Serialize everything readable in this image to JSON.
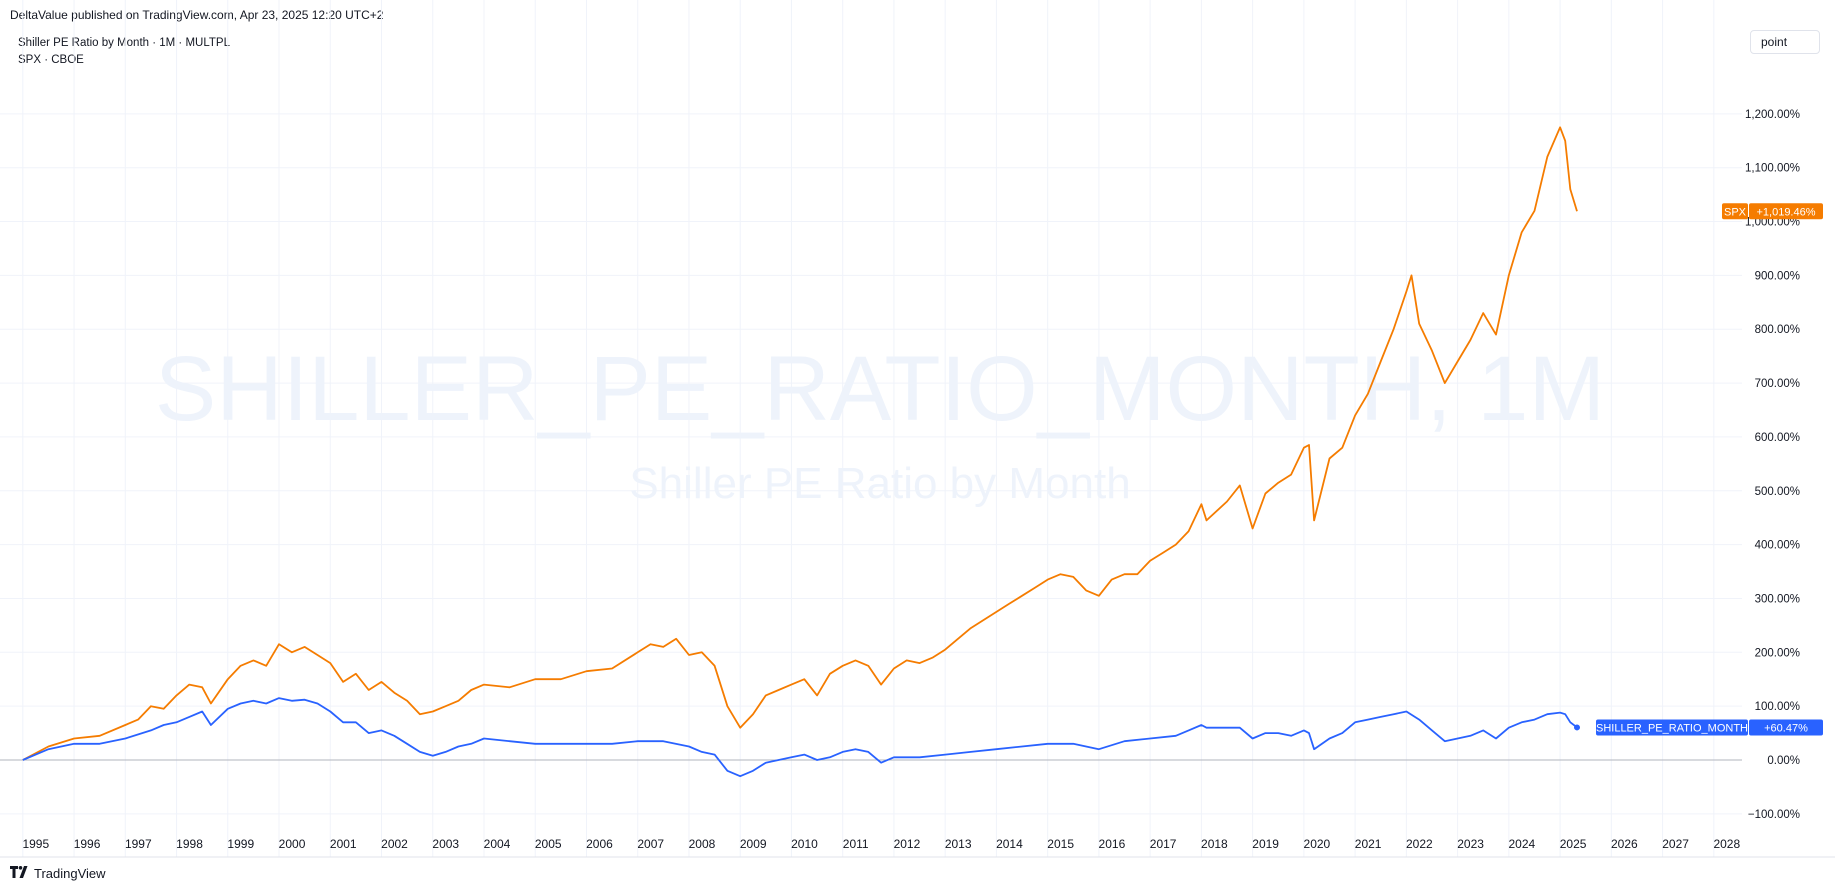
{
  "header": {
    "published": "DeltaValue published on TradingView.com, Apr 23, 2025 12:20 UTC+2"
  },
  "legend": {
    "line1": "Shiller PE Ratio by Month · 1M · MULTPL",
    "line2": "SPX · CBOE"
  },
  "scale_button": "point",
  "watermark": {
    "title": "SHILLER_PE_RATIO_MONTH, 1M",
    "subtitle": "Shiller PE Ratio by Month"
  },
  "footer": {
    "brand": "TradingView"
  },
  "colors": {
    "spx": "#f57c00",
    "shiller": "#2962ff",
    "grid": "#f0f3fa",
    "zero": "#b2b5be",
    "watermark": "#eef3fb"
  },
  "chart_data": {
    "type": "line",
    "x_axis": {
      "label": "",
      "range": [
        1994.75,
        2028.55
      ],
      "ticks": [
        "1995",
        "1996",
        "1997",
        "1998",
        "1999",
        "2000",
        "2001",
        "2002",
        "2003",
        "2004",
        "2005",
        "2006",
        "2007",
        "2008",
        "2009",
        "2010",
        "2011",
        "2012",
        "2013",
        "2014",
        "2015",
        "2016",
        "2017",
        "2018",
        "2019",
        "2020",
        "2021",
        "2022",
        "2023",
        "2024",
        "2025",
        "2026",
        "2027",
        "2028"
      ]
    },
    "y_axis": {
      "label": "",
      "unit": "%",
      "range": [
        -130,
        1300
      ],
      "ticks": [
        "−100.00%",
        "0.00%",
        "100.00%",
        "200.00%",
        "300.00%",
        "400.00%",
        "500.00%",
        "600.00%",
        "700.00%",
        "800.00%",
        "900.00%",
        "1,000.00%",
        "1,100.00%",
        "1,200.00%"
      ]
    },
    "grid": true,
    "series": [
      {
        "name": "SPX",
        "label": "SPX",
        "last_value": "+1,019.46%",
        "points": [
          [
            1995.0,
            0
          ],
          [
            1995.5,
            25
          ],
          [
            1996.0,
            40
          ],
          [
            1996.5,
            45
          ],
          [
            1997.0,
            65
          ],
          [
            1997.25,
            75
          ],
          [
            1997.5,
            100
          ],
          [
            1997.75,
            95
          ],
          [
            1998.0,
            120
          ],
          [
            1998.25,
            140
          ],
          [
            1998.5,
            135
          ],
          [
            1998.67,
            105
          ],
          [
            1999.0,
            150
          ],
          [
            1999.25,
            175
          ],
          [
            1999.5,
            185
          ],
          [
            1999.75,
            175
          ],
          [
            2000.0,
            215
          ],
          [
            2000.25,
            200
          ],
          [
            2000.5,
            210
          ],
          [
            2000.75,
            195
          ],
          [
            2001.0,
            180
          ],
          [
            2001.25,
            145
          ],
          [
            2001.5,
            160
          ],
          [
            2001.75,
            130
          ],
          [
            2002.0,
            145
          ],
          [
            2002.25,
            125
          ],
          [
            2002.5,
            110
          ],
          [
            2002.75,
            85
          ],
          [
            2003.0,
            90
          ],
          [
            2003.25,
            100
          ],
          [
            2003.5,
            110
          ],
          [
            2003.75,
            130
          ],
          [
            2004.0,
            140
          ],
          [
            2004.5,
            135
          ],
          [
            2005.0,
            150
          ],
          [
            2005.5,
            150
          ],
          [
            2006.0,
            165
          ],
          [
            2006.5,
            170
          ],
          [
            2007.0,
            200
          ],
          [
            2007.25,
            215
          ],
          [
            2007.5,
            210
          ],
          [
            2007.75,
            225
          ],
          [
            2008.0,
            195
          ],
          [
            2008.25,
            200
          ],
          [
            2008.5,
            175
          ],
          [
            2008.75,
            100
          ],
          [
            2009.0,
            60
          ],
          [
            2009.25,
            85
          ],
          [
            2009.5,
            120
          ],
          [
            2009.75,
            130
          ],
          [
            2010.0,
            140
          ],
          [
            2010.25,
            150
          ],
          [
            2010.5,
            120
          ],
          [
            2010.75,
            160
          ],
          [
            2011.0,
            175
          ],
          [
            2011.25,
            185
          ],
          [
            2011.5,
            175
          ],
          [
            2011.75,
            140
          ],
          [
            2012.0,
            170
          ],
          [
            2012.25,
            185
          ],
          [
            2012.5,
            180
          ],
          [
            2012.75,
            190
          ],
          [
            2013.0,
            205
          ],
          [
            2013.25,
            225
          ],
          [
            2013.5,
            245
          ],
          [
            2013.75,
            260
          ],
          [
            2014.0,
            275
          ],
          [
            2014.25,
            290
          ],
          [
            2014.5,
            305
          ],
          [
            2014.75,
            320
          ],
          [
            2015.0,
            335
          ],
          [
            2015.25,
            345
          ],
          [
            2015.5,
            340
          ],
          [
            2015.75,
            315
          ],
          [
            2016.0,
            305
          ],
          [
            2016.25,
            335
          ],
          [
            2016.5,
            345
          ],
          [
            2016.75,
            345
          ],
          [
            2017.0,
            370
          ],
          [
            2017.25,
            385
          ],
          [
            2017.5,
            400
          ],
          [
            2017.75,
            425
          ],
          [
            2018.0,
            475
          ],
          [
            2018.1,
            445
          ],
          [
            2018.5,
            480
          ],
          [
            2018.75,
            510
          ],
          [
            2019.0,
            430
          ],
          [
            2019.25,
            495
          ],
          [
            2019.5,
            515
          ],
          [
            2019.75,
            530
          ],
          [
            2020.0,
            580
          ],
          [
            2020.1,
            585
          ],
          [
            2020.2,
            445
          ],
          [
            2020.5,
            560
          ],
          [
            2020.75,
            580
          ],
          [
            2021.0,
            640
          ],
          [
            2021.25,
            680
          ],
          [
            2021.5,
            740
          ],
          [
            2021.75,
            800
          ],
          [
            2022.0,
            870
          ],
          [
            2022.1,
            900
          ],
          [
            2022.25,
            810
          ],
          [
            2022.5,
            760
          ],
          [
            2022.75,
            700
          ],
          [
            2023.0,
            740
          ],
          [
            2023.25,
            780
          ],
          [
            2023.5,
            830
          ],
          [
            2023.75,
            790
          ],
          [
            2024.0,
            900
          ],
          [
            2024.25,
            980
          ],
          [
            2024.5,
            1020
          ],
          [
            2024.75,
            1120
          ],
          [
            2025.0,
            1175
          ],
          [
            2025.1,
            1150
          ],
          [
            2025.2,
            1060
          ],
          [
            2025.33,
            1019
          ]
        ]
      },
      {
        "name": "SHILLER_PE_RATIO_MONTH",
        "label": "SHILLER_PE_RATIO_MONTH",
        "last_value": "+60.47%",
        "points": [
          [
            1995.0,
            0
          ],
          [
            1995.5,
            20
          ],
          [
            1996.0,
            30
          ],
          [
            1996.5,
            30
          ],
          [
            1997.0,
            40
          ],
          [
            1997.5,
            55
          ],
          [
            1997.75,
            65
          ],
          [
            1998.0,
            70
          ],
          [
            1998.25,
            80
          ],
          [
            1998.5,
            90
          ],
          [
            1998.67,
            65
          ],
          [
            1999.0,
            95
          ],
          [
            1999.25,
            105
          ],
          [
            1999.5,
            110
          ],
          [
            1999.75,
            105
          ],
          [
            2000.0,
            115
          ],
          [
            2000.25,
            110
          ],
          [
            2000.5,
            112
          ],
          [
            2000.75,
            105
          ],
          [
            2001.0,
            90
          ],
          [
            2001.25,
            70
          ],
          [
            2001.5,
            70
          ],
          [
            2001.75,
            50
          ],
          [
            2002.0,
            55
          ],
          [
            2002.25,
            45
          ],
          [
            2002.5,
            30
          ],
          [
            2002.75,
            15
          ],
          [
            2003.0,
            8
          ],
          [
            2003.25,
            15
          ],
          [
            2003.5,
            25
          ],
          [
            2003.75,
            30
          ],
          [
            2004.0,
            40
          ],
          [
            2004.5,
            35
          ],
          [
            2005.0,
            30
          ],
          [
            2005.5,
            30
          ],
          [
            2006.0,
            30
          ],
          [
            2006.5,
            30
          ],
          [
            2007.0,
            35
          ],
          [
            2007.5,
            35
          ],
          [
            2008.0,
            25
          ],
          [
            2008.25,
            15
          ],
          [
            2008.5,
            10
          ],
          [
            2008.75,
            -20
          ],
          [
            2009.0,
            -30
          ],
          [
            2009.25,
            -20
          ],
          [
            2009.5,
            -5
          ],
          [
            2009.75,
            0
          ],
          [
            2010.0,
            5
          ],
          [
            2010.25,
            10
          ],
          [
            2010.5,
            0
          ],
          [
            2010.75,
            5
          ],
          [
            2011.0,
            15
          ],
          [
            2011.25,
            20
          ],
          [
            2011.5,
            15
          ],
          [
            2011.75,
            -5
          ],
          [
            2012.0,
            5
          ],
          [
            2012.5,
            5
          ],
          [
            2013.0,
            10
          ],
          [
            2013.5,
            15
          ],
          [
            2014.0,
            20
          ],
          [
            2014.5,
            25
          ],
          [
            2015.0,
            30
          ],
          [
            2015.5,
            30
          ],
          [
            2015.75,
            25
          ],
          [
            2016.0,
            20
          ],
          [
            2016.5,
            35
          ],
          [
            2017.0,
            40
          ],
          [
            2017.5,
            45
          ],
          [
            2017.75,
            55
          ],
          [
            2018.0,
            65
          ],
          [
            2018.1,
            60
          ],
          [
            2018.5,
            60
          ],
          [
            2018.75,
            60
          ],
          [
            2019.0,
            40
          ],
          [
            2019.25,
            50
          ],
          [
            2019.5,
            50
          ],
          [
            2019.75,
            45
          ],
          [
            2020.0,
            55
          ],
          [
            2020.1,
            50
          ],
          [
            2020.2,
            20
          ],
          [
            2020.5,
            40
          ],
          [
            2020.75,
            50
          ],
          [
            2021.0,
            70
          ],
          [
            2021.25,
            75
          ],
          [
            2021.5,
            80
          ],
          [
            2021.75,
            85
          ],
          [
            2022.0,
            90
          ],
          [
            2022.25,
            75
          ],
          [
            2022.5,
            55
          ],
          [
            2022.75,
            35
          ],
          [
            2023.0,
            40
          ],
          [
            2023.25,
            45
          ],
          [
            2023.5,
            55
          ],
          [
            2023.75,
            40
          ],
          [
            2024.0,
            60
          ],
          [
            2024.25,
            70
          ],
          [
            2024.5,
            75
          ],
          [
            2024.75,
            85
          ],
          [
            2025.0,
            88
          ],
          [
            2025.1,
            85
          ],
          [
            2025.2,
            70
          ],
          [
            2025.33,
            60.47
          ]
        ]
      }
    ]
  }
}
